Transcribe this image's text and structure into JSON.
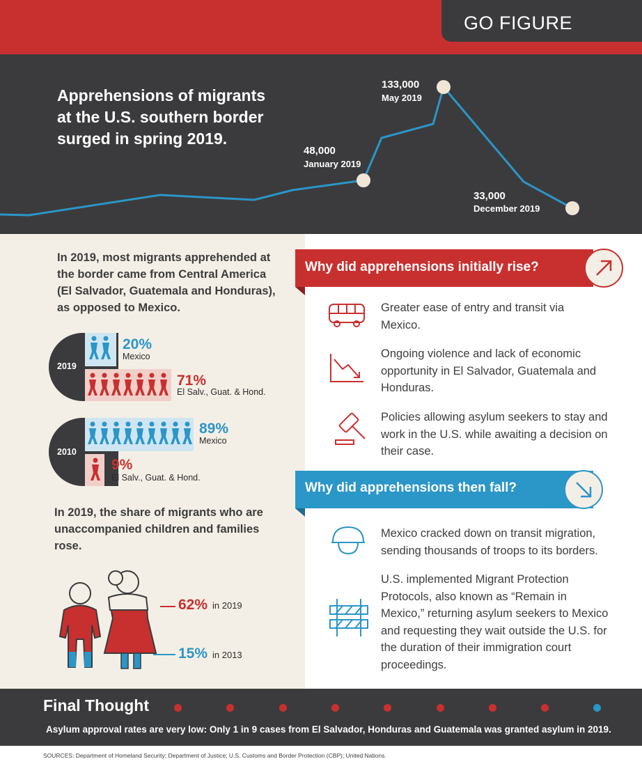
{
  "header": {
    "badge": "GO FIGURE",
    "title": "Apprehensions of migrants at the U.S. southern border surged in spring 2019."
  },
  "chart_data": {
    "type": "line",
    "colors": {
      "line": "#2b96c8",
      "marker": "#efe6d8"
    },
    "labeled_points": [
      {
        "value": "48,000",
        "label": "January 2019"
      },
      {
        "value": "133,000",
        "label": "May 2019"
      },
      {
        "value": "33,000",
        "label": "December 2019"
      }
    ]
  },
  "origins": {
    "intro": "In 2019, most migrants apprehended at the border came from Central America (El Salvador, Guatemala and Honduras), as opposed to Mexico.",
    "groups": [
      {
        "year": "2019",
        "rows": [
          {
            "percent": "20%",
            "label": "Mexico",
            "value": 20,
            "color": "blue"
          },
          {
            "percent": "71%",
            "label": "El Salv., Guat. & Hond.",
            "value": 71,
            "color": "red"
          }
        ]
      },
      {
        "year": "2010",
        "rows": [
          {
            "percent": "89%",
            "label": "Mexico",
            "value": 89,
            "color": "blue"
          },
          {
            "percent": "9%",
            "label": "El Salv., Guat. & Hond.",
            "value": 9,
            "color": "red"
          }
        ]
      }
    ]
  },
  "families": {
    "intro": "In 2019, the share of migrants who are unaccompanied children and families rose.",
    "share_2019": {
      "percent": "62%",
      "label": "in 2019",
      "value": 62
    },
    "share_2013": {
      "percent": "15%",
      "label": "in 2013",
      "value": 15
    }
  },
  "rise": {
    "heading": "Why did apprehensions initially rise?",
    "icon": "arrow-up-right-icon",
    "reasons": [
      {
        "icon": "bus-icon",
        "text": "Greater ease of entry and transit via Mexico."
      },
      {
        "icon": "declining-chart-icon",
        "text": "Ongoing violence and lack of economic opportunity in El Salvador, Guatemala and Honduras."
      },
      {
        "icon": "gavel-icon",
        "text": "Policies allowing asylum seekers to stay and work in the U.S. while awaiting a decision on their case."
      }
    ]
  },
  "fall": {
    "heading": "Why did apprehensions then fall?",
    "icon": "arrow-down-right-icon",
    "reasons": [
      {
        "icon": "helmet-icon",
        "text": "Mexico cracked down on transit migration, sending thousands of troops to its borders."
      },
      {
        "icon": "barrier-icon",
        "text": "U.S. implemented Migrant Protection Protocols, also known as “Remain in Mexico,” returning asylum seekers to Mexico and requesting they wait outside the U.S. for the duration of their immigration court proceedings."
      }
    ]
  },
  "final": {
    "title": "Final Thought",
    "text": "Asylum approval rates are very low: Only 1 in 9 cases from El Salvador, Honduras and Guatemala was granted asylum in 2019.",
    "dots_total": 9,
    "dots_highlight": 1
  },
  "sources": "SOURCES: Department of Homeland Security; Department of Justice; U.S. Customs and Border Protection (CBP); United Nations.",
  "colors": {
    "red": "#c8302f",
    "blue": "#2b96c8",
    "dark": "#3b3b3d",
    "cream": "#f4efe6"
  }
}
